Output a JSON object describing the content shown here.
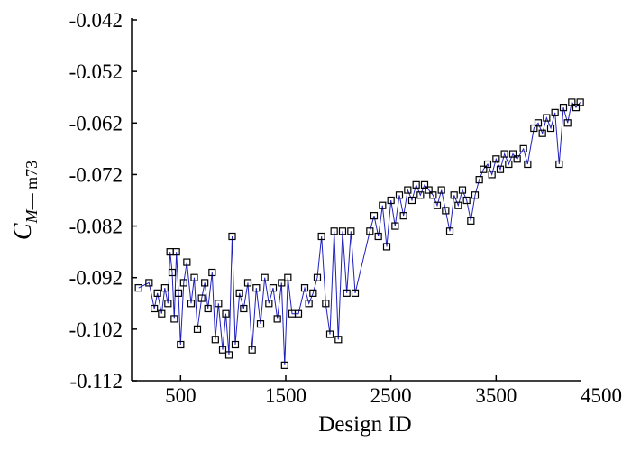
{
  "chart_data": {
    "type": "line",
    "xlabel": "Design ID",
    "ylabel": {
      "main": "C",
      "sub_italic": "M",
      "sub_rest": "— m73"
    },
    "xlim": [
      0,
      4500
    ],
    "xticks": [
      500,
      1500,
      2500,
      3500,
      4500
    ],
    "ylim": [
      -0.112,
      -0.042
    ],
    "yticks": [
      -0.042,
      -0.052,
      -0.062,
      -0.072,
      -0.082,
      -0.092,
      -0.102,
      -0.112
    ],
    "x": [
      100,
      200,
      250,
      280,
      320,
      350,
      380,
      400,
      420,
      440,
      460,
      480,
      500,
      530,
      560,
      600,
      630,
      660,
      700,
      730,
      760,
      800,
      830,
      860,
      900,
      930,
      960,
      990,
      1020,
      1060,
      1100,
      1140,
      1180,
      1220,
      1260,
      1300,
      1340,
      1380,
      1420,
      1460,
      1490,
      1520,
      1560,
      1620,
      1680,
      1720,
      1760,
      1800,
      1840,
      1880,
      1920,
      1960,
      2000,
      2040,
      2080,
      2120,
      2160,
      2300,
      2340,
      2380,
      2420,
      2460,
      2500,
      2540,
      2580,
      2620,
      2660,
      2700,
      2740,
      2780,
      2820,
      2860,
      2900,
      2940,
      2980,
      3020,
      3060,
      3100,
      3140,
      3180,
      3220,
      3260,
      3300,
      3340,
      3380,
      3420,
      3460,
      3500,
      3540,
      3580,
      3620,
      3660,
      3700,
      3760,
      3800,
      3860,
      3900,
      3940,
      3980,
      4020,
      4060,
      4100,
      4140,
      4180,
      4220,
      4260,
      4300
    ],
    "series": [
      {
        "color": "#1f1fbf",
        "marker_color": "#000000",
        "values": [
          -0.094,
          -0.093,
          -0.098,
          -0.095,
          -0.099,
          -0.094,
          -0.097,
          -0.087,
          -0.091,
          -0.1,
          -0.087,
          -0.095,
          -0.105,
          -0.093,
          -0.089,
          -0.097,
          -0.092,
          -0.102,
          -0.096,
          -0.093,
          -0.098,
          -0.091,
          -0.104,
          -0.097,
          -0.106,
          -0.099,
          -0.107,
          -0.084,
          -0.105,
          -0.095,
          -0.098,
          -0.093,
          -0.106,
          -0.094,
          -0.101,
          -0.092,
          -0.097,
          -0.094,
          -0.1,
          -0.093,
          -0.109,
          -0.092,
          -0.099,
          -0.099,
          -0.094,
          -0.097,
          -0.095,
          -0.092,
          -0.084,
          -0.097,
          -0.103,
          -0.083,
          -0.104,
          -0.083,
          -0.095,
          -0.083,
          -0.095,
          -0.083,
          -0.08,
          -0.084,
          -0.078,
          -0.086,
          -0.077,
          -0.082,
          -0.076,
          -0.08,
          -0.075,
          -0.077,
          -0.074,
          -0.076,
          -0.074,
          -0.075,
          -0.076,
          -0.078,
          -0.075,
          -0.079,
          -0.083,
          -0.076,
          -0.078,
          -0.075,
          -0.077,
          -0.081,
          -0.076,
          -0.073,
          -0.071,
          -0.07,
          -0.072,
          -0.069,
          -0.071,
          -0.068,
          -0.07,
          -0.068,
          -0.069,
          -0.067,
          -0.07,
          -0.063,
          -0.062,
          -0.064,
          -0.061,
          -0.063,
          -0.06,
          -0.07,
          -0.059,
          -0.062,
          -0.058,
          -0.059,
          -0.058
        ]
      }
    ]
  }
}
